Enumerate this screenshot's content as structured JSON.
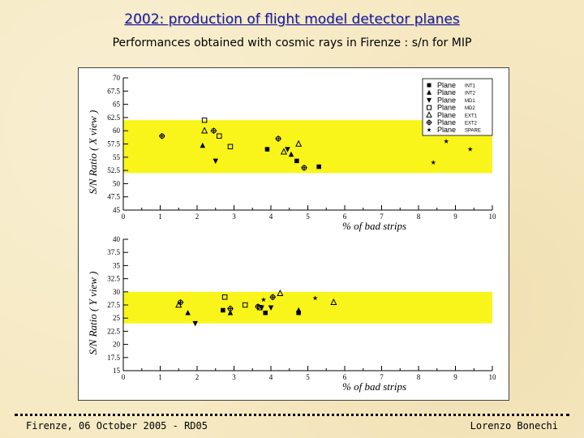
{
  "slide": {
    "title": "2002: production of flight model detector planes",
    "subtitle": "Performances obtained with cosmic rays in Firenze : s/n for MIP",
    "footer_left": "Firenze, 06 October 2005  -  RD05",
    "footer_right": "Lorenzo Bonechi"
  },
  "colors": {
    "band": "#f9f51a",
    "title": "#1a1a9a"
  },
  "chart_data": [
    {
      "type": "scatter",
      "title": "",
      "xlabel": "% of bad strips",
      "ylabel": "S/N Ratio ( X view )",
      "xlim": [
        0,
        10
      ],
      "ylim": [
        45,
        70
      ],
      "xticks": [
        "0",
        "1",
        "2",
        "3",
        "4",
        "5",
        "6",
        "7",
        "8",
        "9",
        "10"
      ],
      "yticks": [
        "45",
        "47.5",
        "50",
        "52.5",
        "55",
        "57.5",
        "60",
        "62.5",
        "65",
        "67.5",
        "70"
      ],
      "band": [
        52,
        62
      ],
      "legend": [
        {
          "name": "Plane",
          "sub": "INT1",
          "marker": "square-filled"
        },
        {
          "name": "Plane",
          "sub": "INT2",
          "marker": "triangle-up-filled"
        },
        {
          "name": "Plane",
          "sub": "MD1",
          "marker": "triangle-down-filled"
        },
        {
          "name": "Plane",
          "sub": "MD2",
          "marker": "square-open"
        },
        {
          "name": "Plane",
          "sub": "EXT1",
          "marker": "triangle-up-open"
        },
        {
          "name": "Plane",
          "sub": "EXT2",
          "marker": "cross-open"
        },
        {
          "name": "Plane",
          "sub": "SPARE",
          "marker": "star"
        }
      ],
      "series": [
        {
          "name": "INT1",
          "marker": "square-filled",
          "points": [
            [
              3.9,
              56.5
            ],
            [
              4.7,
              54.3
            ],
            [
              5.3,
              53.2
            ]
          ]
        },
        {
          "name": "INT2",
          "marker": "triangle-up-filled",
          "points": [
            [
              2.15,
              57.2
            ],
            [
              4.55,
              55.5
            ]
          ]
        },
        {
          "name": "MD1",
          "marker": "triangle-down-filled",
          "points": [
            [
              2.5,
              54.3
            ],
            [
              4.45,
              56.5
            ]
          ]
        },
        {
          "name": "MD2",
          "marker": "square-open",
          "points": [
            [
              2.2,
              62
            ],
            [
              2.6,
              59
            ],
            [
              2.9,
              57
            ]
          ]
        },
        {
          "name": "EXT1",
          "marker": "triangle-up-open",
          "points": [
            [
              2.2,
              60
            ],
            [
              4.35,
              56
            ],
            [
              4.75,
              57.5
            ]
          ]
        },
        {
          "name": "EXT2",
          "marker": "cross-open",
          "points": [
            [
              1.05,
              59
            ],
            [
              2.45,
              60
            ],
            [
              4.2,
              58.5
            ],
            [
              4.9,
              53
            ]
          ]
        },
        {
          "name": "SPARE",
          "marker": "star",
          "points": [
            [
              8.4,
              54
            ],
            [
              8.75,
              58
            ],
            [
              9.4,
              56.5
            ]
          ]
        }
      ]
    },
    {
      "type": "scatter",
      "title": "",
      "xlabel": "% of bad strips",
      "ylabel": "S/N Ratio ( Y view )",
      "xlim": [
        0,
        10
      ],
      "ylim": [
        15,
        40
      ],
      "xticks": [
        "0",
        "1",
        "2",
        "3",
        "4",
        "5",
        "6",
        "7",
        "8",
        "9",
        "10"
      ],
      "yticks": [
        "15",
        "17.5",
        "20",
        "22.5",
        "25",
        "27.5",
        "30",
        "32.5",
        "35",
        "37.5",
        "40"
      ],
      "band": [
        24,
        30
      ],
      "series": [
        {
          "name": "INT1",
          "marker": "square-filled",
          "points": [
            [
              2.7,
              26.5
            ],
            [
              3.85,
              26
            ],
            [
              4.75,
              26
            ]
          ]
        },
        {
          "name": "INT2",
          "marker": "triangle-up-filled",
          "points": [
            [
              1.75,
              26
            ],
            [
              2.9,
              26
            ],
            [
              4.75,
              26.5
            ]
          ]
        },
        {
          "name": "MD1",
          "marker": "triangle-down-filled",
          "points": [
            [
              1.95,
              24
            ],
            [
              3.75,
              27
            ],
            [
              4.0,
              27
            ]
          ]
        },
        {
          "name": "MD2",
          "marker": "square-open",
          "points": [
            [
              2.75,
              29
            ],
            [
              3.3,
              27.5
            ],
            [
              3.7,
              27
            ]
          ]
        },
        {
          "name": "EXT1",
          "marker": "triangle-up-open",
          "points": [
            [
              1.5,
              27.5
            ],
            [
              4.25,
              29.7
            ],
            [
              5.7,
              28
            ]
          ]
        },
        {
          "name": "EXT2",
          "marker": "cross-open",
          "points": [
            [
              1.55,
              28
            ],
            [
              2.9,
              26.8
            ],
            [
              3.65,
              27.2
            ],
            [
              4.05,
              29
            ]
          ]
        },
        {
          "name": "SPARE",
          "marker": "star",
          "points": [
            [
              3.8,
              28.5
            ],
            [
              5.2,
              28.8
            ]
          ]
        }
      ]
    }
  ]
}
